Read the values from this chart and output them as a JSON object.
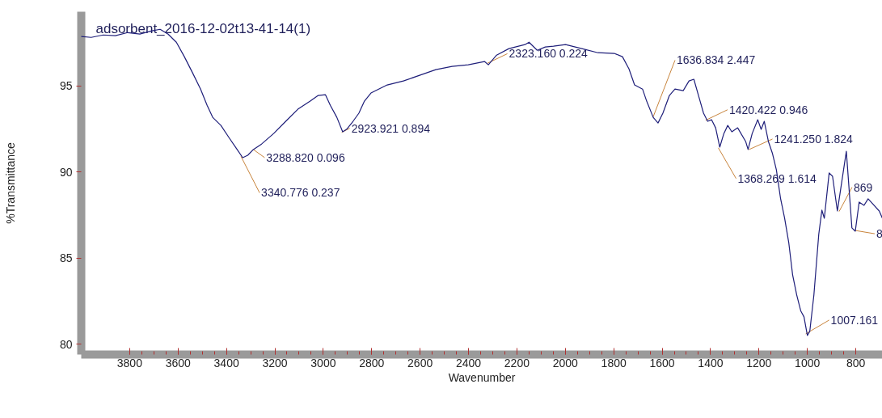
{
  "chart_data": {
    "type": "line",
    "title": "adsorbent_2016-12-02t13-41-14(1)",
    "xlabel": "Wavenumber",
    "ylabel": "%Transmittance",
    "xlim": [
      4000,
      690
    ],
    "ylim": [
      79.4,
      99.3
    ],
    "xticks": [
      3800,
      3600,
      3400,
      3200,
      3000,
      2800,
      2600,
      2400,
      2200,
      2000,
      1800,
      1600,
      1400,
      1200,
      1000,
      800
    ],
    "yticks": [
      80,
      85,
      90,
      95
    ],
    "grid": false,
    "x": [
      4000,
      3959,
      3909,
      3859,
      3808,
      3758,
      3708,
      3674,
      3641,
      3607,
      3574,
      3540,
      3507,
      3480,
      3457,
      3423,
      3390,
      3356,
      3333,
      3312,
      3289,
      3255,
      3205,
      3155,
      3105,
      3054,
      3021,
      2991,
      2971,
      2944,
      2920,
      2904,
      2877,
      2853,
      2830,
      2803,
      2736,
      2669,
      2602,
      2535,
      2468,
      2401,
      2334,
      2318,
      2284,
      2233,
      2167,
      2150,
      2116,
      2083,
      2049,
      1999,
      1932,
      1865,
      1798,
      1764,
      1737,
      1714,
      1681,
      1664,
      1637,
      1617,
      1597,
      1570,
      1547,
      1513,
      1489,
      1469,
      1446,
      1429,
      1412,
      1396,
      1379,
      1362,
      1345,
      1329,
      1312,
      1288,
      1255,
      1245,
      1228,
      1205,
      1191,
      1178,
      1161,
      1144,
      1128,
      1111,
      1094,
      1077,
      1061,
      1044,
      1027,
      1014,
      1000,
      990,
      973,
      953,
      940,
      930,
      910,
      896,
      876,
      839,
      816,
      802,
      786,
      766,
      749,
      703,
      690
    ],
    "series": [
      {
        "color": "#1f1f7a",
        "values": [
          97.86,
          97.81,
          97.95,
          97.91,
          98.09,
          98.0,
          98.19,
          98.28,
          98.0,
          97.53,
          96.69,
          95.75,
          94.81,
          93.87,
          93.17,
          92.7,
          92.0,
          91.3,
          90.83,
          90.97,
          91.3,
          91.62,
          92.23,
          92.94,
          93.64,
          94.11,
          94.44,
          94.48,
          93.87,
          93.17,
          92.33,
          92.47,
          92.94,
          93.41,
          94.11,
          94.58,
          95.05,
          95.28,
          95.61,
          95.94,
          96.13,
          96.22,
          96.41,
          96.22,
          96.78,
          97.16,
          97.39,
          97.53,
          97.06,
          97.25,
          97.3,
          97.39,
          97.16,
          96.92,
          96.88,
          96.69,
          95.98,
          95.05,
          94.81,
          94.11,
          93.17,
          92.84,
          93.41,
          94.44,
          94.81,
          94.72,
          95.28,
          95.38,
          94.25,
          93.41,
          92.94,
          93.03,
          92.56,
          91.44,
          92.23,
          92.7,
          92.33,
          92.56,
          91.77,
          91.3,
          92.23,
          93.03,
          92.47,
          92.94,
          91.77,
          91.06,
          90.12,
          88.48,
          87.31,
          85.91,
          84.03,
          82.86,
          81.92,
          81.59,
          80.51,
          80.75,
          82.86,
          86.37,
          87.78,
          87.31,
          89.94,
          89.75,
          87.73,
          91.2,
          86.75,
          86.56,
          88.25,
          88.06,
          88.44,
          87.73,
          87.31
        ]
      }
    ],
    "annotations": [
      {
        "text": "3340.776 0.237",
        "x": 3340,
        "y": 90.9
      },
      {
        "text": "3288.820 0.096",
        "x": 3289,
        "y": 91.3
      },
      {
        "text": "2923.921 0.894",
        "x": 2924,
        "y": 92.3
      },
      {
        "text": "2323.160 0.224",
        "x": 2323,
        "y": 96.3
      },
      {
        "text": "1636.834 2.447",
        "x": 1637,
        "y": 93.2
      },
      {
        "text": "1420.422 0.946",
        "x": 1420,
        "y": 93.0
      },
      {
        "text": "1368.269 1.614",
        "x": 1368,
        "y": 91.4
      },
      {
        "text": "1241.250 1.824",
        "x": 1241,
        "y": 91.3
      },
      {
        "text": "1007.161",
        "x": 1007,
        "y": 80.6
      },
      {
        "text": "869",
        "x": 869,
        "y": 87.7
      },
      {
        "text": "8",
        "x": 802,
        "y": 86.6
      }
    ]
  }
}
